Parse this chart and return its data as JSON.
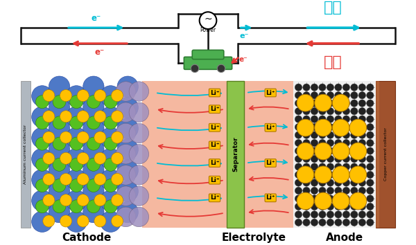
{
  "fig_width": 6.0,
  "fig_height": 3.54,
  "bg_color": "#ffffff",
  "cyan_color": "#00bcd4",
  "red_color": "#e53935",
  "green_color": "#4caf50",
  "blue_sphere_color": "#4472c4",
  "green_sphere_color": "#55c020",
  "yellow_sphere_color": "#ffc000",
  "purple_sphere_color": "#9e8fbf",
  "electrolyte_color": "#f5b8a0",
  "separator_color": "#8bc34a",
  "copper_color": "#a0522d",
  "aluminum_color": "#b0b8c0",
  "black_sphere_color": "#222222",
  "li_label_bg": "#ffc000",
  "wire_color": "#111111",
  "title_charge": "充电",
  "title_discharge": "放电",
  "label_cathode": "Cathode",
  "label_electrolyte": "Electrolyte",
  "label_anode": "Anode",
  "label_separator": "Separator",
  "label_al": "Aluminum current collector",
  "label_cu": "Copper current collector",
  "label_power": "Power"
}
